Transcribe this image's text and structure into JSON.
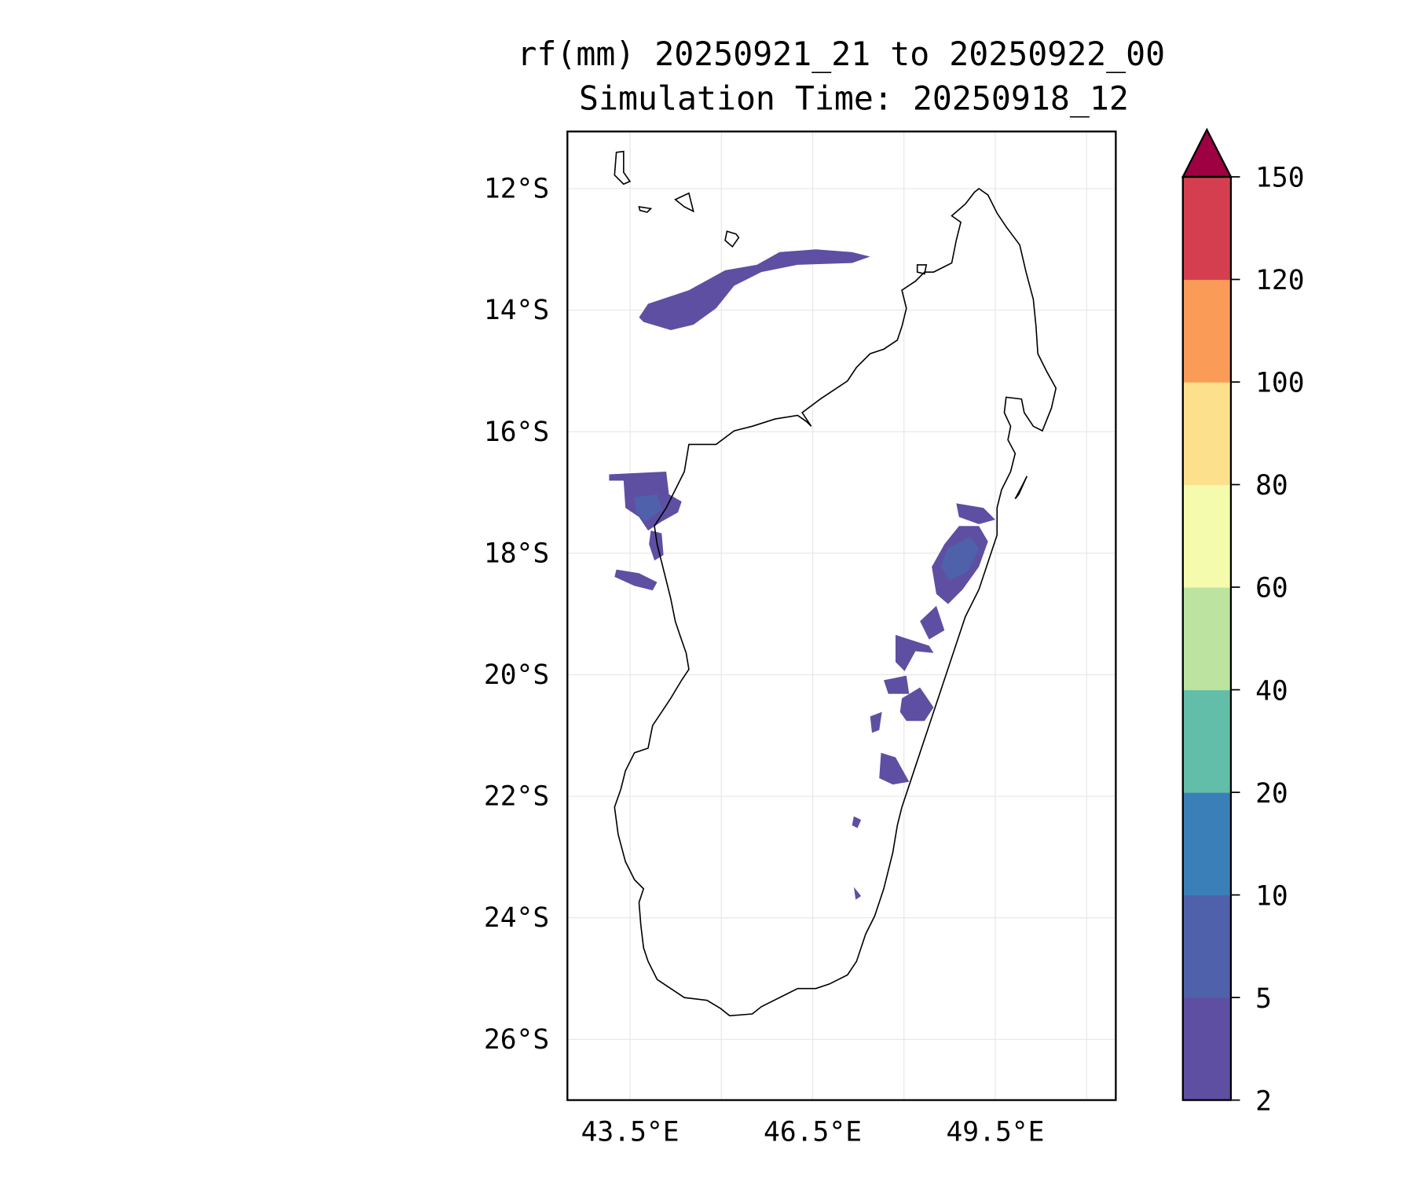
{
  "chart_data": {
    "type": "heatmap",
    "subtype": "filled-contour map",
    "title": "rf(mm) 20250921_21 to 20250922_00",
    "subtitle": "Simulation Time: 20250918_12",
    "xlabel": "",
    "ylabel": "",
    "xlim": [
      42.47,
      51.48
    ],
    "ylim": [
      -27.0,
      -11.06
    ],
    "x_ticks": [
      43.5,
      46.5,
      49.5
    ],
    "x_tick_labels": [
      "43.5°E",
      "46.5°E",
      "49.5°E"
    ],
    "x_gridlines": [
      43.5,
      45,
      46.5,
      48,
      49.5,
      51
    ],
    "y_ticks": [
      -12,
      -14,
      -16,
      -18,
      -20,
      -22,
      -24,
      -26
    ],
    "y_tick_labels": [
      "12°S",
      "14°S",
      "16°S",
      "18°S",
      "20°S",
      "22°S",
      "24°S",
      "26°S"
    ],
    "grid": true,
    "colorbar": {
      "levels": [
        2,
        5,
        10,
        20,
        40,
        60,
        80,
        100,
        120,
        150
      ],
      "tick_labels": [
        "2",
        "5",
        "10",
        "20",
        "40",
        "60",
        "80",
        "100",
        "120",
        "150"
      ],
      "colors": [
        "#5e4fa2",
        "#4f61aa",
        "#3a7fb8",
        "#62bda9",
        "#bde3a0",
        "#f4fbad",
        "#fde08b",
        "#fa9c58",
        "#d53e4f"
      ],
      "extend_max_color": "#9e0142",
      "placement": "right"
    },
    "region": "Madagascar",
    "rain_present_levels": [
      "2-5",
      "5-10"
    ]
  }
}
